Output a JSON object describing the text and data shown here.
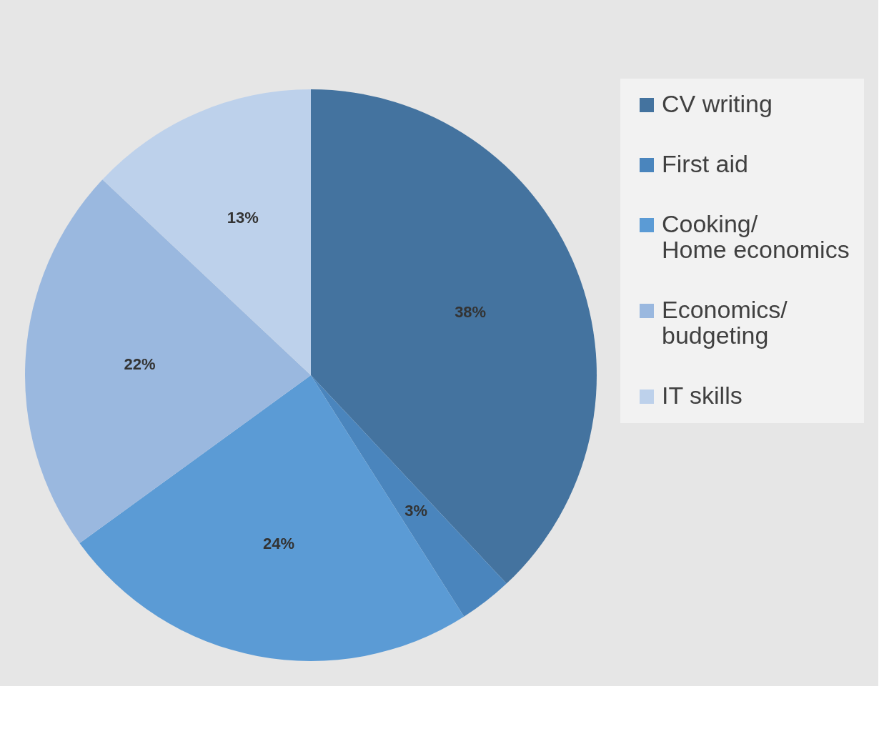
{
  "chart_data": {
    "type": "pie",
    "categories": [
      "CV writing",
      "First aid",
      "Cooking/ Home economics",
      "Economics/ budgeting",
      "IT skills"
    ],
    "values": [
      38,
      3,
      24,
      22,
      13
    ],
    "colors": [
      "#44739f",
      "#4a85bd",
      "#5b9bd5",
      "#9ab8df",
      "#bdd1eb"
    ],
    "value_labels": [
      "38%",
      "3%",
      "24%",
      "22%",
      "13%"
    ],
    "legend": "right"
  }
}
